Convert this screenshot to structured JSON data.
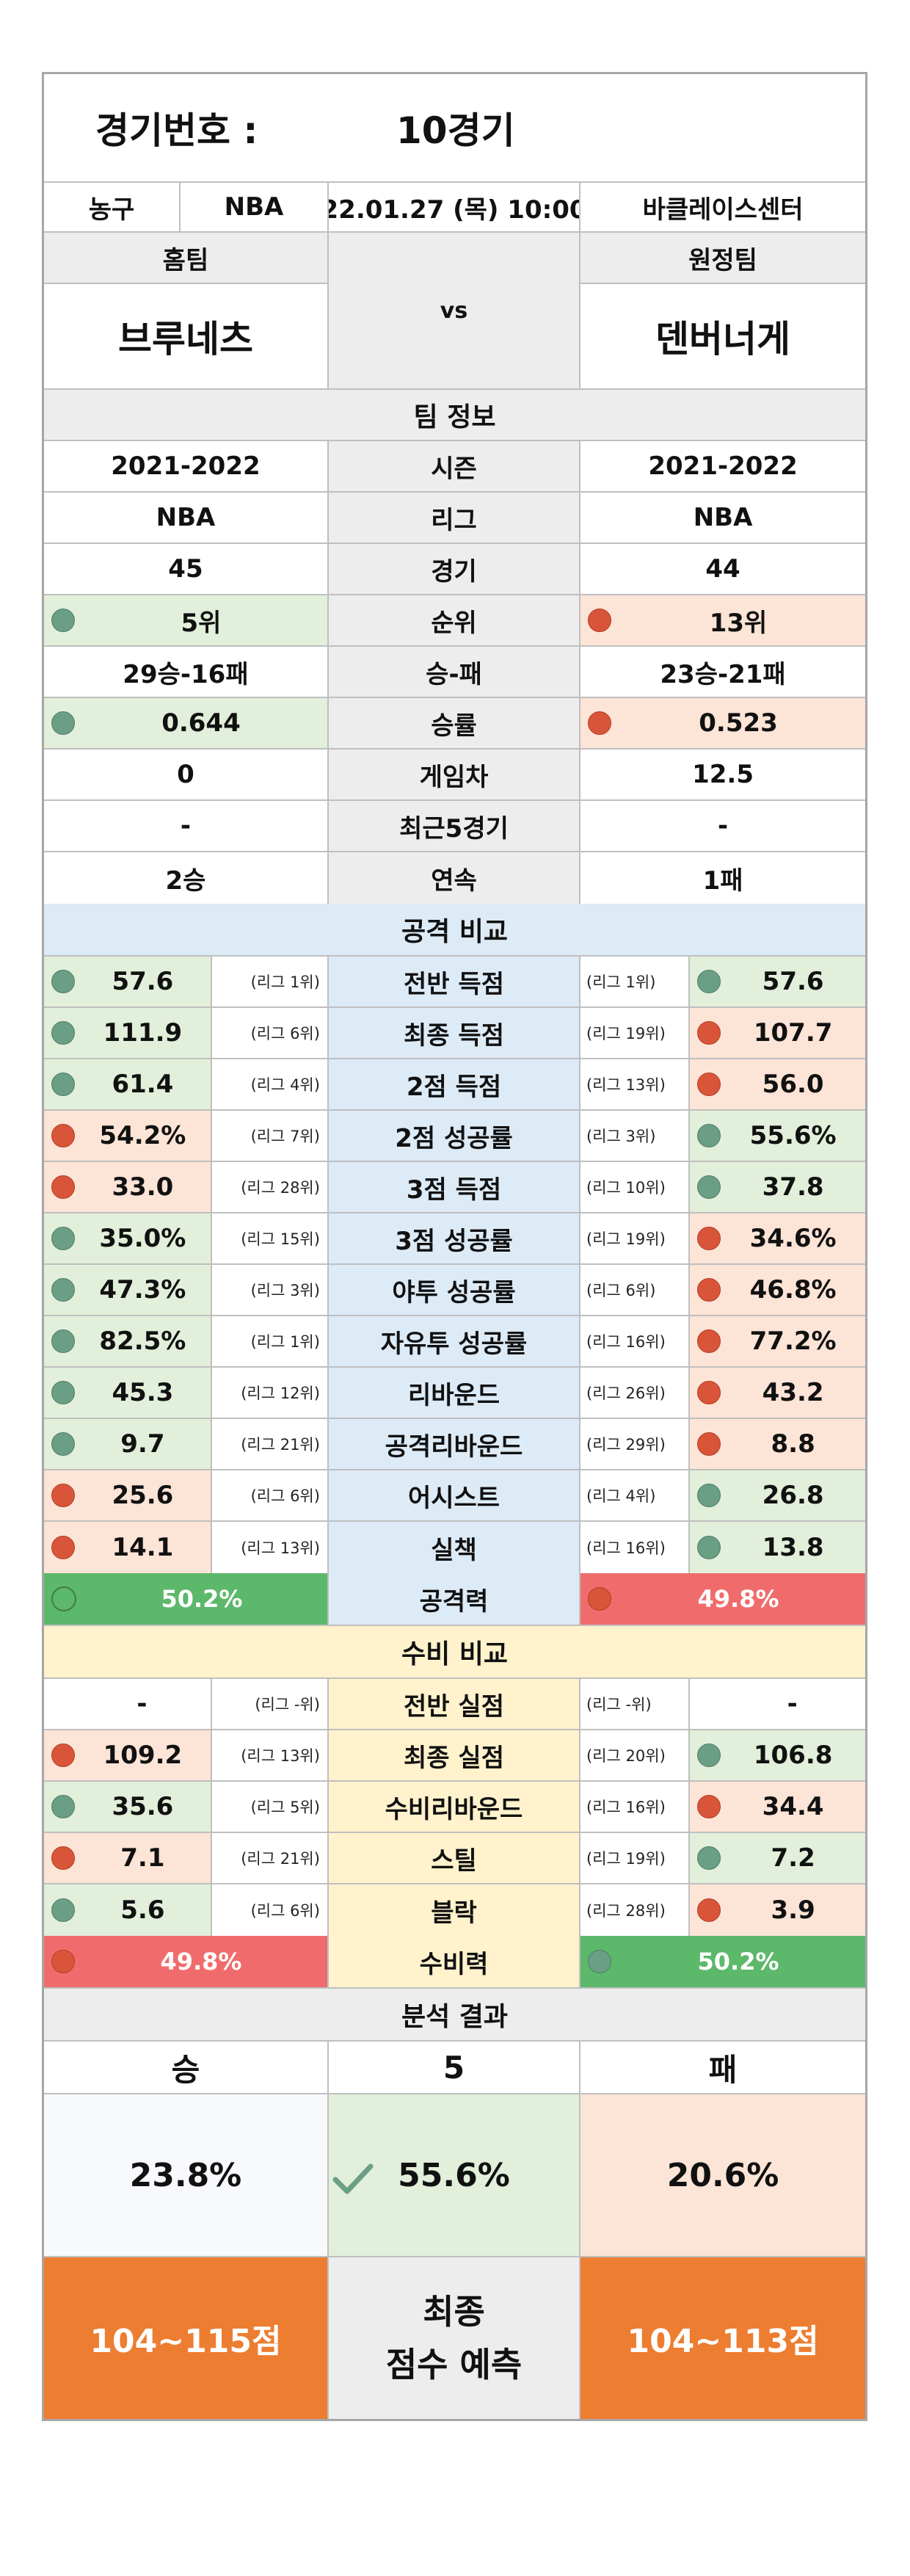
{
  "header": {
    "match_label": "경기번호 :",
    "match_value": "10경기",
    "sport": "농구",
    "league": "NBA",
    "datetime": "22.01.27 (목) 10:00",
    "venue": "바클레이스센터"
  },
  "teams": {
    "home_label": "홈팀",
    "away_label": "원정팀",
    "vs": "vs",
    "home_name": "브루네츠",
    "away_name": "덴버너게"
  },
  "info": {
    "title": "팀 정보",
    "rows": [
      {
        "label": "시즌",
        "home": "2021-2022",
        "away": "2021-2022"
      },
      {
        "label": "리그",
        "home": "NBA",
        "away": "NBA"
      },
      {
        "label": "경기",
        "home": "45",
        "away": "44"
      },
      {
        "label": "순위",
        "home": "5위",
        "away": "13위",
        "home_dot": "green",
        "away_dot": "red"
      },
      {
        "label": "승-패",
        "home": "29승-16패",
        "away": "23승-21패"
      },
      {
        "label": "승률",
        "home": "0.644",
        "away": "0.523",
        "home_dot": "green",
        "away_dot": "red"
      },
      {
        "label": "게임차",
        "home": "0",
        "away": "12.5"
      },
      {
        "label": "최근5경기",
        "home": "-",
        "away": "-"
      },
      {
        "label": "연속",
        "home": "2승",
        "away": "1패"
      }
    ]
  },
  "offense": {
    "title": "공격 비교",
    "rows": [
      {
        "label": "전반 득점",
        "home": "57.6",
        "home_rank": "(리그 1위)",
        "away": "57.6",
        "away_rank": "(리그 1위)",
        "home_dot": "green",
        "away_dot": "green"
      },
      {
        "label": "최종 득점",
        "home": "111.9",
        "home_rank": "(리그 6위)",
        "away": "107.7",
        "away_rank": "(리그 19위)",
        "home_dot": "green",
        "away_dot": "red"
      },
      {
        "label": "2점 득점",
        "home": "61.4",
        "home_rank": "(리그 4위)",
        "away": "56.0",
        "away_rank": "(리그 13위)",
        "home_dot": "green",
        "away_dot": "red"
      },
      {
        "label": "2점 성공률",
        "home": "54.2%",
        "home_rank": "(리그 7위)",
        "away": "55.6%",
        "away_rank": "(리그 3위)",
        "home_dot": "red",
        "away_dot": "green"
      },
      {
        "label": "3점 득점",
        "home": "33.0",
        "home_rank": "(리그 28위)",
        "away": "37.8",
        "away_rank": "(리그 10위)",
        "home_dot": "red",
        "away_dot": "green"
      },
      {
        "label": "3점 성공률",
        "home": "35.0%",
        "home_rank": "(리그 15위)",
        "away": "34.6%",
        "away_rank": "(리그 19위)",
        "home_dot": "green",
        "away_dot": "red"
      },
      {
        "label": "야투 성공률",
        "home": "47.3%",
        "home_rank": "(리그 3위)",
        "away": "46.8%",
        "away_rank": "(리그 6위)",
        "home_dot": "green",
        "away_dot": "red"
      },
      {
        "label": "자유투 성공률",
        "home": "82.5%",
        "home_rank": "(리그 1위)",
        "away": "77.2%",
        "away_rank": "(리그 16위)",
        "home_dot": "green",
        "away_dot": "red"
      },
      {
        "label": "리바운드",
        "home": "45.3",
        "home_rank": "(리그 12위)",
        "away": "43.2",
        "away_rank": "(리그 26위)",
        "home_dot": "green",
        "away_dot": "red"
      },
      {
        "label": "공격리바운드",
        "home": "9.7",
        "home_rank": "(리그 21위)",
        "away": "8.8",
        "away_rank": "(리그 29위)",
        "home_dot": "green",
        "away_dot": "red"
      },
      {
        "label": "어시스트",
        "home": "25.6",
        "home_rank": "(리그 6위)",
        "away": "26.8",
        "away_rank": "(리그 4위)",
        "home_dot": "red",
        "away_dot": "green"
      },
      {
        "label": "실책",
        "home": "14.1",
        "home_rank": "(리그 13위)",
        "away": "13.8",
        "away_rank": "(리그 16위)",
        "home_dot": "red",
        "away_dot": "green"
      }
    ],
    "power_label": "공격력",
    "power_home": "50.2%",
    "power_away": "49.8%"
  },
  "defense": {
    "title": "수비 비교",
    "rows": [
      {
        "label": "전반 실점",
        "home": "-",
        "home_rank": "(리그 -위)",
        "away": "-",
        "away_rank": "(리그 -위)",
        "home_dot": "none",
        "away_dot": "none"
      },
      {
        "label": "최종 실점",
        "home": "109.2",
        "home_rank": "(리그 13위)",
        "away": "106.8",
        "away_rank": "(리그 20위)",
        "home_dot": "red",
        "away_dot": "green"
      },
      {
        "label": "수비리바운드",
        "home": "35.6",
        "home_rank": "(리그 5위)",
        "away": "34.4",
        "away_rank": "(리그 16위)",
        "home_dot": "green",
        "away_dot": "red"
      },
      {
        "label": "스틸",
        "home": "7.1",
        "home_rank": "(리그 21위)",
        "away": "7.2",
        "away_rank": "(리그 19위)",
        "home_dot": "red",
        "away_dot": "green"
      },
      {
        "label": "블락",
        "home": "5.6",
        "home_rank": "(리그 6위)",
        "away": "3.9",
        "away_rank": "(리그 28위)",
        "home_dot": "green",
        "away_dot": "red"
      }
    ],
    "power_label": "수비력",
    "power_home": "49.8%",
    "power_away": "50.2%"
  },
  "result": {
    "title": "분석 결과",
    "win_label": "승",
    "draw_label": "5",
    "lose_label": "패",
    "win_pct": "23.8%",
    "draw_pct": "55.6%",
    "lose_pct": "20.6%",
    "home_score": "104~115점",
    "final_label_1": "최종",
    "final_label_2": "점수 예측",
    "away_score": "104~113점"
  },
  "colors": {
    "green_dot": "#6a9f86",
    "red_dot": "#d9553a",
    "green_bg": "#e2efda",
    "pink_bg": "#fce4d6",
    "blue_bg": "#ddebf7",
    "yellow_bg": "#fff2cc",
    "orange": "#ed7d31",
    "big_green": "#5cb86a",
    "big_red": "#f06c6c"
  }
}
